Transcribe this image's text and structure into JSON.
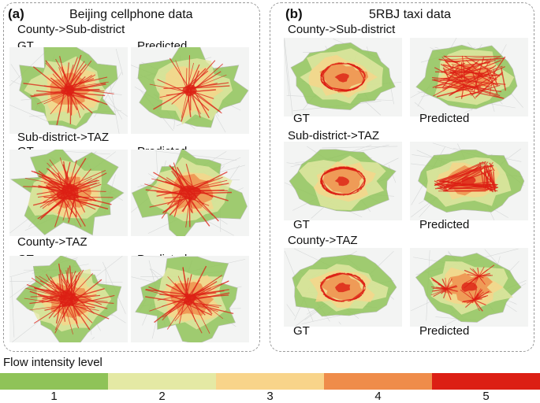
{
  "panels": [
    {
      "letter": "(a)",
      "title": "Beijing cellphone data",
      "rows": [
        {
          "title": "County->Sub-district",
          "gt": "GT",
          "pred": "Predicted",
          "gt_map": {
            "intensity": 4,
            "shape": "beijing",
            "core": "small"
          },
          "pred_map": {
            "intensity": 3,
            "shape": "beijing",
            "core": "small"
          }
        },
        {
          "title": "Sub-district->TAZ",
          "gt": "GT",
          "pred": "Predicted",
          "gt_map": {
            "intensity": 5,
            "shape": "beijing",
            "core": "large"
          },
          "pred_map": {
            "intensity": 4,
            "shape": "beijing",
            "core": "large"
          }
        },
        {
          "title": "County->TAZ",
          "gt": "GT",
          "pred": "Predicted",
          "gt_map": {
            "intensity": 5,
            "shape": "beijing",
            "core": "large"
          },
          "pred_map": {
            "intensity": 4,
            "shape": "beijing",
            "core": "mixed"
          }
        }
      ]
    },
    {
      "letter": "(b)",
      "title": "5RBJ taxi data",
      "rows": [
        {
          "title": "County->Sub-district",
          "gt": "GT",
          "pred": "Predicted",
          "gt_map": {
            "intensity": 5,
            "shape": "city",
            "core": "ring"
          },
          "pred_map": {
            "intensity": 5,
            "shape": "city",
            "core": "scatter"
          }
        },
        {
          "title": "Sub-district->TAZ",
          "gt": "GT",
          "pred": "Predicted",
          "gt_map": {
            "intensity": 5,
            "shape": "city",
            "core": "ring"
          },
          "pred_map": {
            "intensity": 5,
            "shape": "city",
            "core": "triangle"
          }
        },
        {
          "title": "County->TAZ",
          "gt": "GT",
          "pred": "Predicted",
          "gt_map": {
            "intensity": 5,
            "shape": "city",
            "core": "ring"
          },
          "pred_map": {
            "intensity": 5,
            "shape": "city",
            "core": "patchy"
          }
        }
      ]
    }
  ],
  "legend": {
    "title": "Flow intensity level",
    "levels": [
      {
        "label": "1",
        "color": "#8fc358"
      },
      {
        "label": "2",
        "color": "#e4e9a4"
      },
      {
        "label": "3",
        "color": "#f8d48a"
      },
      {
        "label": "4",
        "color": "#ef8c4a"
      },
      {
        "label": "5",
        "color": "#dc1f14"
      }
    ]
  }
}
